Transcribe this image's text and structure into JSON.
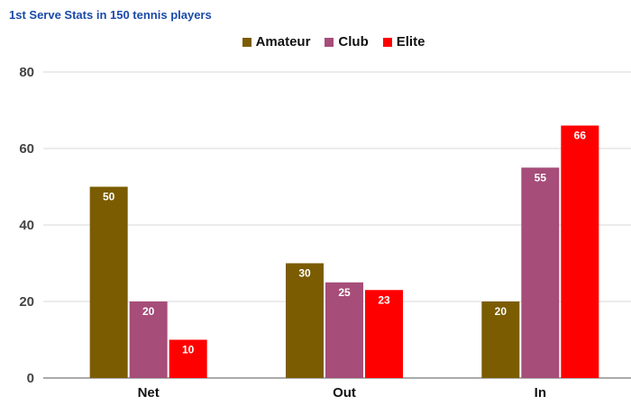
{
  "chart_data": {
    "type": "bar",
    "title": "1st Serve Stats in 150 tennis players",
    "categories": [
      "Net",
      "Out",
      "In"
    ],
    "series": [
      {
        "name": "Amateur",
        "color": "#7b5c00",
        "values": [
          50,
          30,
          20
        ]
      },
      {
        "name": "Club",
        "color": "#a64d79",
        "values": [
          20,
          25,
          55
        ]
      },
      {
        "name": "Elite",
        "color": "#ff0000",
        "values": [
          10,
          23,
          66
        ]
      }
    ],
    "ylim": [
      0,
      80
    ],
    "yticks": [
      0,
      20,
      40,
      60,
      80
    ],
    "xlabel": "",
    "ylabel": "",
    "grid": true,
    "legend_position": "top"
  }
}
